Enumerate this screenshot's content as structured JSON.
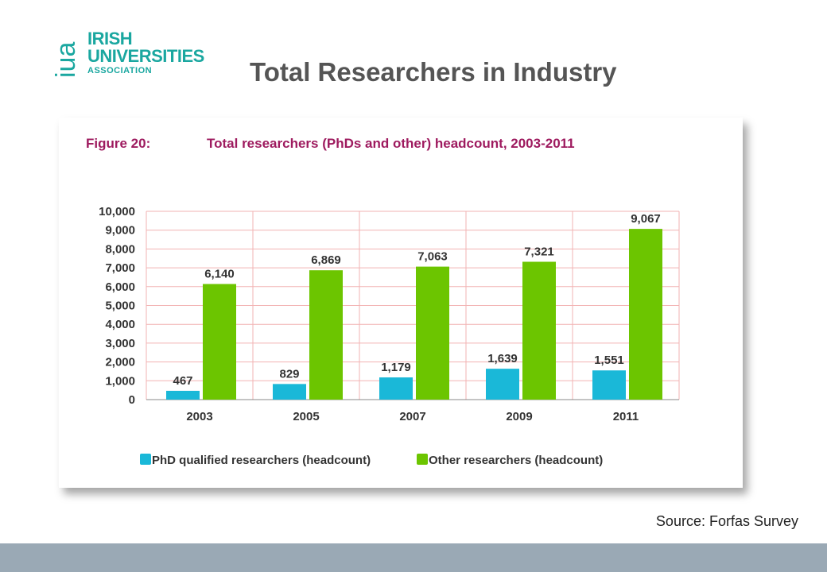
{
  "logo": {
    "mark": "iua",
    "line1": "IRISH",
    "line2": "UNIVERSITIES",
    "line3": "ASSOCIATION",
    "color": "#1aa7a0"
  },
  "slide_title": "Total Researchers in Industry",
  "source": "Source: Forfas Survey",
  "colors": {
    "phd": "#1ab8d8",
    "other": "#6cc500",
    "figure_title": "#9e1b5f",
    "grid": "#f2b3b3",
    "footer": "#9aa9b5"
  },
  "chart_data": {
    "type": "bar",
    "figure_label": "Figure 20:",
    "title": "Total researchers (PhDs and other) headcount, 2003-2011",
    "categories": [
      "2003",
      "2005",
      "2007",
      "2009",
      "2011"
    ],
    "series": [
      {
        "name": "PhD qualified researchers (headcount)",
        "values": [
          467,
          829,
          1179,
          1639,
          1551
        ],
        "labels": [
          "467",
          "829",
          "1,179",
          "1,639",
          "1,551"
        ]
      },
      {
        "name": "Other researchers (headcount)",
        "values": [
          6140,
          6869,
          7063,
          7321,
          9067
        ],
        "labels": [
          "6,140",
          "6,869",
          "7,063",
          "7,321",
          "9,067"
        ]
      }
    ],
    "yticks": [
      "0",
      "1,000",
      "2,000",
      "3,000",
      "4,000",
      "5,000",
      "6,000",
      "7,000",
      "8,000",
      "9,000",
      "10,000"
    ],
    "ylim": [
      0,
      10000
    ],
    "grid": true,
    "legend": "bottom"
  }
}
